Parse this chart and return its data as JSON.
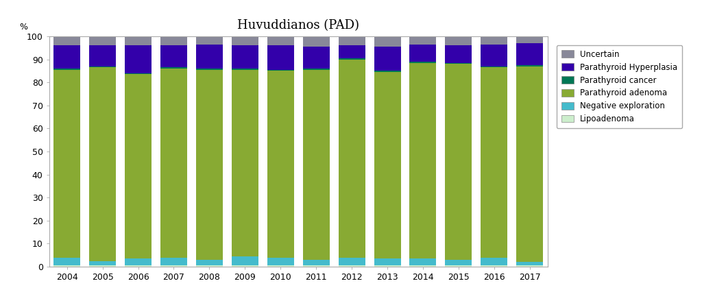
{
  "title": "Huvuddianos (PAD)",
  "years": [
    2004,
    2005,
    2006,
    2007,
    2008,
    2009,
    2010,
    2011,
    2012,
    2013,
    2014,
    2015,
    2016,
    2017
  ],
  "percent_label": "%",
  "ylim": [
    0,
    100
  ],
  "yticks": [
    0,
    10,
    20,
    30,
    40,
    50,
    60,
    70,
    80,
    90,
    100
  ],
  "series": {
    "Lipoadenoma": [
      0.5,
      0.5,
      0.5,
      0.5,
      0.5,
      0.5,
      0.5,
      0.5,
      0.5,
      0.5,
      0.5,
      0.5,
      0.5,
      0.5
    ],
    "Negative exploration": [
      3.5,
      2.0,
      3.0,
      3.5,
      2.5,
      4.0,
      3.5,
      2.5,
      3.5,
      3.0,
      3.0,
      2.5,
      3.5,
      1.5
    ],
    "Parathyroid adenoma": [
      81.5,
      84.0,
      80.0,
      82.0,
      82.5,
      81.0,
      81.0,
      82.5,
      86.0,
      81.0,
      85.0,
      85.0,
      82.5,
      85.0
    ],
    "Parathyroid cancer": [
      0.5,
      0.5,
      0.5,
      0.5,
      0.5,
      0.5,
      0.5,
      0.5,
      0.5,
      0.5,
      0.5,
      0.5,
      0.5,
      0.5
    ],
    "Parathyroid Hyperplasia": [
      10.0,
      9.0,
      12.0,
      9.5,
      10.5,
      10.0,
      10.5,
      9.5,
      5.5,
      10.5,
      7.5,
      7.5,
      9.5,
      9.5
    ],
    "Uncertain": [
      4.0,
      4.0,
      4.0,
      4.0,
      3.5,
      4.0,
      4.0,
      4.5,
      4.0,
      4.5,
      3.5,
      4.0,
      3.5,
      3.0
    ]
  },
  "colors": {
    "Lipoadenoma": "#cceecc",
    "Negative exploration": "#44bbcc",
    "Parathyroid adenoma": "#88aa33",
    "Parathyroid cancer": "#007755",
    "Parathyroid Hyperplasia": "#3300aa",
    "Uncertain": "#888899"
  },
  "legend_order": [
    "Uncertain",
    "Parathyroid Hyperplasia",
    "Parathyroid cancer",
    "Parathyroid adenoma",
    "Negative exploration",
    "Lipoadenoma"
  ],
  "bar_width": 0.75,
  "background_color": "#ffffff",
  "title_fontsize": 13,
  "tick_fontsize": 9,
  "legend_fontsize": 8.5
}
